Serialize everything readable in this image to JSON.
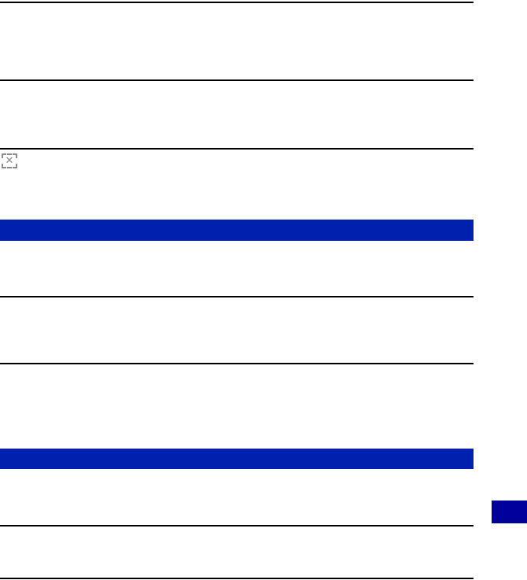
{
  "page": {
    "background": "#ffffff"
  },
  "colors": {
    "rule_color": "#000000",
    "section_bar_color": "#0021AE",
    "page_tab_color": "#00009A",
    "broken_icon_color": "#8a8a8a"
  },
  "icons": {
    "broken_image_glyph": "✕"
  }
}
